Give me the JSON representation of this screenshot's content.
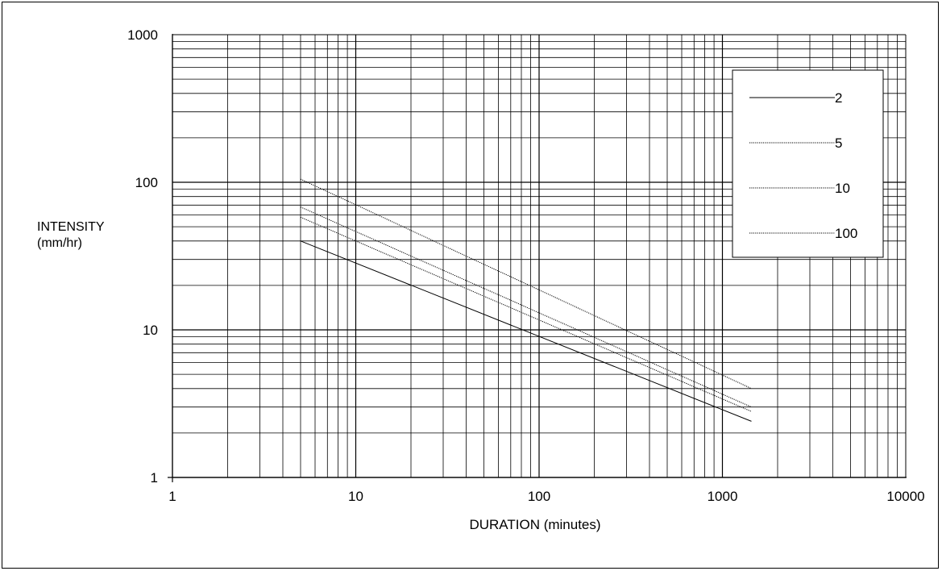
{
  "chart_data": {
    "type": "line",
    "title": "",
    "xlabel": "DURATION (minutes)",
    "ylabel_lines": [
      "INTENSITY",
      "(mm/hr)"
    ],
    "x_scale": "log",
    "y_scale": "log",
    "xlim": [
      1,
      10000
    ],
    "ylim": [
      1,
      1000
    ],
    "x_ticks": [
      1,
      10,
      100,
      1000,
      10000
    ],
    "x_tick_labels": [
      "1",
      "10",
      "100",
      "1000",
      "10000"
    ],
    "y_ticks": [
      1,
      10,
      100,
      1000
    ],
    "y_tick_labels": [
      "1",
      "10",
      "100",
      "1000"
    ],
    "grid": true,
    "legend_position": "top-right",
    "series": [
      {
        "name": "2",
        "style": "solid",
        "points": [
          [
            5,
            40
          ],
          [
            1440,
            2.4
          ]
        ]
      },
      {
        "name": "5",
        "style": "dotted",
        "points": [
          [
            5,
            58
          ],
          [
            1440,
            2.8
          ]
        ]
      },
      {
        "name": "10",
        "style": "dotted",
        "points": [
          [
            5,
            68
          ],
          [
            1440,
            3.0
          ]
        ]
      },
      {
        "name": "100",
        "style": "dotted",
        "points": [
          [
            5,
            105
          ],
          [
            1440,
            4.0
          ]
        ]
      }
    ]
  },
  "colors": {
    "line": "#000000",
    "grid": "#000000",
    "background": "#ffffff"
  }
}
